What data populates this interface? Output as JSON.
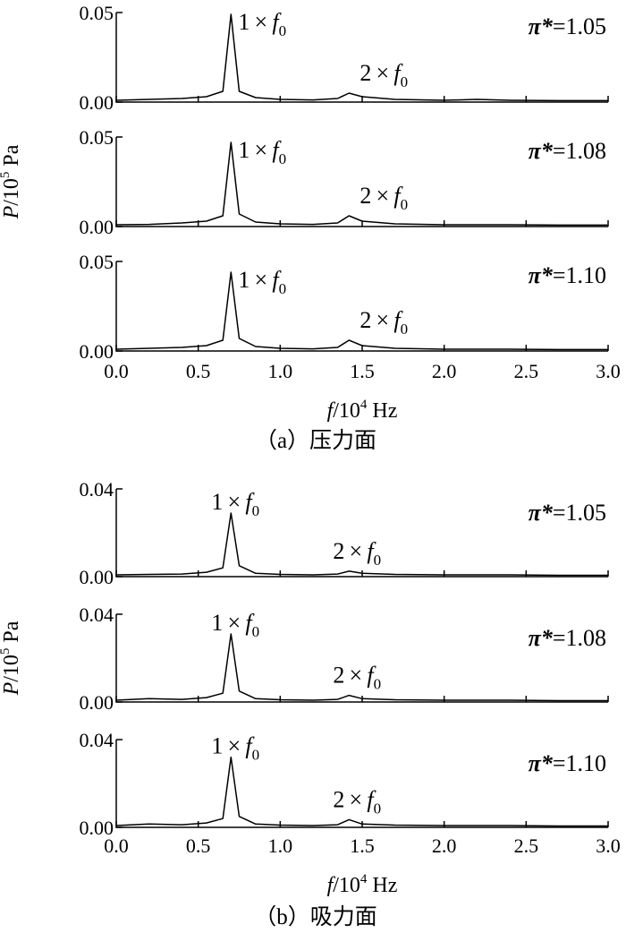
{
  "chart_data": [
    {
      "id": "a",
      "type": "line",
      "caption": "（a）压力面",
      "xlabel": "f/10^4 Hz",
      "ylabel": "P/10^5 Pa",
      "xlim": [
        0.0,
        3.0
      ],
      "ylim": [
        0.0,
        0.05
      ],
      "xticks": [
        "0.0",
        "0.5",
        "1.0",
        "1.5",
        "2.0",
        "2.5",
        "3.0"
      ],
      "yticks": [
        "0.00",
        "0.05"
      ],
      "panels": [
        {
          "label": "π*=1.05",
          "peak1_label": "1×f0",
          "peak2_label": "2×f0",
          "x": [
            0.0,
            0.2,
            0.4,
            0.55,
            0.65,
            0.7,
            0.75,
            0.85,
            1.0,
            1.2,
            1.35,
            1.42,
            1.5,
            1.7,
            2.0,
            2.2,
            2.4,
            2.7,
            3.0
          ],
          "y": [
            0.001,
            0.0015,
            0.002,
            0.003,
            0.006,
            0.049,
            0.006,
            0.0025,
            0.0015,
            0.0012,
            0.002,
            0.005,
            0.003,
            0.0015,
            0.001,
            0.0015,
            0.001,
            0.0008,
            0.0008
          ]
        },
        {
          "label": "π*=1.08",
          "peak1_label": "1×f0",
          "peak2_label": "2×f0",
          "x": [
            0.0,
            0.2,
            0.4,
            0.55,
            0.65,
            0.7,
            0.75,
            0.85,
            1.0,
            1.2,
            1.35,
            1.42,
            1.5,
            1.7,
            2.0,
            2.2,
            2.4,
            2.7,
            3.0
          ],
          "y": [
            0.001,
            0.0012,
            0.002,
            0.003,
            0.006,
            0.047,
            0.007,
            0.0025,
            0.0015,
            0.0012,
            0.002,
            0.006,
            0.003,
            0.0015,
            0.001,
            0.001,
            0.001,
            0.0008,
            0.0008
          ]
        },
        {
          "label": "π*=1.10",
          "peak1_label": "1×f0",
          "peak2_label": "2×f0",
          "x": [
            0.0,
            0.2,
            0.4,
            0.55,
            0.65,
            0.7,
            0.75,
            0.85,
            1.0,
            1.2,
            1.35,
            1.42,
            1.5,
            1.7,
            2.0,
            2.2,
            2.4,
            2.7,
            3.0
          ],
          "y": [
            0.001,
            0.0015,
            0.002,
            0.003,
            0.006,
            0.044,
            0.007,
            0.0025,
            0.0015,
            0.0012,
            0.002,
            0.006,
            0.003,
            0.0015,
            0.001,
            0.001,
            0.001,
            0.0008,
            0.0008
          ]
        }
      ]
    },
    {
      "id": "b",
      "type": "line",
      "caption": "（b）吸力面",
      "xlabel": "f/10^4 Hz",
      "ylabel": "P/10^5 Pa",
      "xlim": [
        0.0,
        3.0
      ],
      "ylim": [
        0.0,
        0.04
      ],
      "xticks": [
        "0.0",
        "0.5",
        "1.0",
        "1.5",
        "2.0",
        "2.5",
        "3.0"
      ],
      "yticks": [
        "0.00",
        "0.04"
      ],
      "panels": [
        {
          "label": "π*=1.05",
          "peak1_label": "1×f0",
          "peak2_label": "2×f0",
          "x": [
            0.0,
            0.2,
            0.4,
            0.55,
            0.65,
            0.7,
            0.75,
            0.85,
            1.0,
            1.2,
            1.35,
            1.42,
            1.5,
            1.7,
            2.0,
            2.2,
            2.4,
            2.7,
            3.0
          ],
          "y": [
            0.0008,
            0.001,
            0.0012,
            0.002,
            0.004,
            0.029,
            0.005,
            0.0015,
            0.001,
            0.0008,
            0.0012,
            0.0025,
            0.0015,
            0.001,
            0.0008,
            0.0008,
            0.0008,
            0.0006,
            0.0006
          ]
        },
        {
          "label": "π*=1.08",
          "peak1_label": "1×f0",
          "peak2_label": "2×f0",
          "x": [
            0.0,
            0.2,
            0.4,
            0.55,
            0.65,
            0.7,
            0.75,
            0.85,
            1.0,
            1.2,
            1.35,
            1.42,
            1.5,
            1.7,
            2.0,
            2.2,
            2.4,
            2.7,
            3.0
          ],
          "y": [
            0.0008,
            0.0015,
            0.0012,
            0.002,
            0.004,
            0.031,
            0.005,
            0.0015,
            0.001,
            0.0008,
            0.0012,
            0.003,
            0.0015,
            0.001,
            0.0008,
            0.0008,
            0.0008,
            0.0006,
            0.0006
          ]
        },
        {
          "label": "π*=1.10",
          "peak1_label": "1×f0",
          "peak2_label": "2×f0",
          "x": [
            0.0,
            0.2,
            0.4,
            0.55,
            0.65,
            0.7,
            0.75,
            0.85,
            1.0,
            1.2,
            1.35,
            1.42,
            1.5,
            1.7,
            2.0,
            2.2,
            2.4,
            2.7,
            3.0
          ],
          "y": [
            0.0008,
            0.0015,
            0.0012,
            0.002,
            0.004,
            0.032,
            0.005,
            0.0015,
            0.001,
            0.0008,
            0.0012,
            0.0035,
            0.0015,
            0.001,
            0.0008,
            0.0008,
            0.0008,
            0.0006,
            0.0006
          ]
        }
      ]
    }
  ]
}
